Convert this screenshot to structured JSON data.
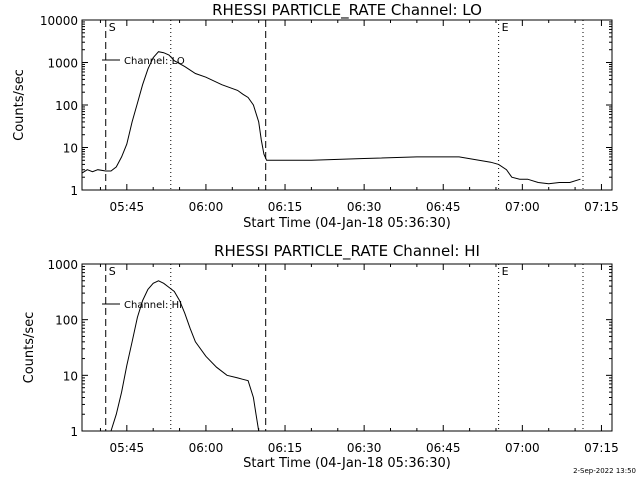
{
  "footer": {
    "timestamp": "2-Sep-2022 13:50"
  },
  "chart_data": [
    {
      "type": "line",
      "title": "RHESSI PARTICLE_RATE Channel: LO",
      "xlabel": "Start Time (04-Jan-18 05:36:30)",
      "ylabel": "Counts/sec",
      "yscale": "log",
      "ylim": [
        1,
        10000
      ],
      "xlim": [
        "05:36:30",
        "07:17:00"
      ],
      "grid": false,
      "xticks": [
        "05:45",
        "06:00",
        "06:15",
        "06:30",
        "06:45",
        "07:00",
        "07:15"
      ],
      "yticks": [
        "1",
        "10",
        "100",
        "1000",
        "10000"
      ],
      "legend": {
        "position": "top-left",
        "entries": [
          "Channel: LO"
        ]
      },
      "markers": [
        {
          "time": "05:41:00",
          "style": "dashed",
          "label": "S"
        },
        {
          "time": "05:53:20",
          "style": "dotted",
          "label": ""
        },
        {
          "time": "06:11:20",
          "style": "dashed",
          "label": ""
        },
        {
          "time": "06:55:30",
          "style": "dotted",
          "label": "E"
        },
        {
          "time": "07:11:30",
          "style": "dotted",
          "label": ""
        }
      ],
      "series": [
        {
          "name": "Channel: LO",
          "x": [
            "05:36:30",
            "05:37:30",
            "05:38:30",
            "05:39:30",
            "05:41:00",
            "05:42:00",
            "05:43:00",
            "05:44:00",
            "05:45:00",
            "05:46:00",
            "05:47:00",
            "05:48:00",
            "05:49:00",
            "05:50:00",
            "05:51:00",
            "05:52:00",
            "05:53:00",
            "05:54:00",
            "05:56:00",
            "05:58:00",
            "06:00:00",
            "06:03:00",
            "06:06:00",
            "06:07:00",
            "06:08:00",
            "06:09:00",
            "06:10:00",
            "06:10:30",
            "06:11:00",
            "06:11:30",
            "06:13:00",
            "06:20:00",
            "06:30:00",
            "06:40:00",
            "06:48:00",
            "06:54:00",
            "06:55:30",
            "06:57:00",
            "06:58:00",
            "06:59:30",
            "07:01:00",
            "07:03:00",
            "07:05:00",
            "07:07:00",
            "07:09:00",
            "07:11:00"
          ],
          "values": [
            2.5,
            3,
            2.7,
            3,
            2.8,
            2.8,
            3.5,
            6,
            12,
            40,
            110,
            300,
            700,
            1300,
            1800,
            1700,
            1500,
            1100,
            800,
            550,
            450,
            300,
            220,
            180,
            150,
            100,
            40,
            15,
            7,
            5,
            5,
            5,
            5.5,
            6,
            6,
            4.5,
            4,
            3,
            2,
            1.8,
            1.8,
            1.5,
            1.4,
            1.5,
            1.5,
            1.8
          ]
        }
      ]
    },
    {
      "type": "line",
      "title": "RHESSI PARTICLE_RATE Channel: HI",
      "xlabel": "Start Time (04-Jan-18 05:36:30)",
      "ylabel": "Counts/sec",
      "yscale": "log",
      "ylim": [
        1,
        1000
      ],
      "xlim": [
        "05:36:30",
        "07:17:00"
      ],
      "grid": false,
      "xticks": [
        "05:45",
        "06:00",
        "06:15",
        "06:30",
        "06:45",
        "07:00",
        "07:15"
      ],
      "yticks": [
        "1",
        "10",
        "100",
        "1000"
      ],
      "legend": {
        "position": "top-left",
        "entries": [
          "Channel: HI"
        ]
      },
      "markers": [
        {
          "time": "05:41:00",
          "style": "dashed",
          "label": "S"
        },
        {
          "time": "05:53:20",
          "style": "dotted",
          "label": ""
        },
        {
          "time": "06:11:20",
          "style": "dashed",
          "label": ""
        },
        {
          "time": "06:55:30",
          "style": "dotted",
          "label": "E"
        },
        {
          "time": "07:11:30",
          "style": "dotted",
          "label": ""
        }
      ],
      "series": [
        {
          "name": "Channel: HI",
          "x": [
            "05:42:00",
            "05:43:00",
            "05:44:00",
            "05:45:00",
            "05:46:00",
            "05:47:00",
            "05:48:00",
            "05:49:00",
            "05:50:00",
            "05:51:00",
            "05:52:00",
            "05:53:00",
            "05:54:00",
            "05:55:00",
            "05:56:00",
            "05:57:00",
            "05:58:00",
            "06:00:00",
            "06:02:00",
            "06:04:00",
            "06:06:00",
            "06:07:00",
            "06:08:00",
            "06:09:00",
            "06:09:30",
            "06:10:00"
          ],
          "values": [
            1,
            2,
            5,
            15,
            40,
            110,
            220,
            350,
            450,
            500,
            450,
            380,
            320,
            220,
            130,
            70,
            40,
            22,
            14,
            10,
            9,
            8.5,
            8,
            4,
            2,
            1
          ]
        }
      ]
    }
  ]
}
